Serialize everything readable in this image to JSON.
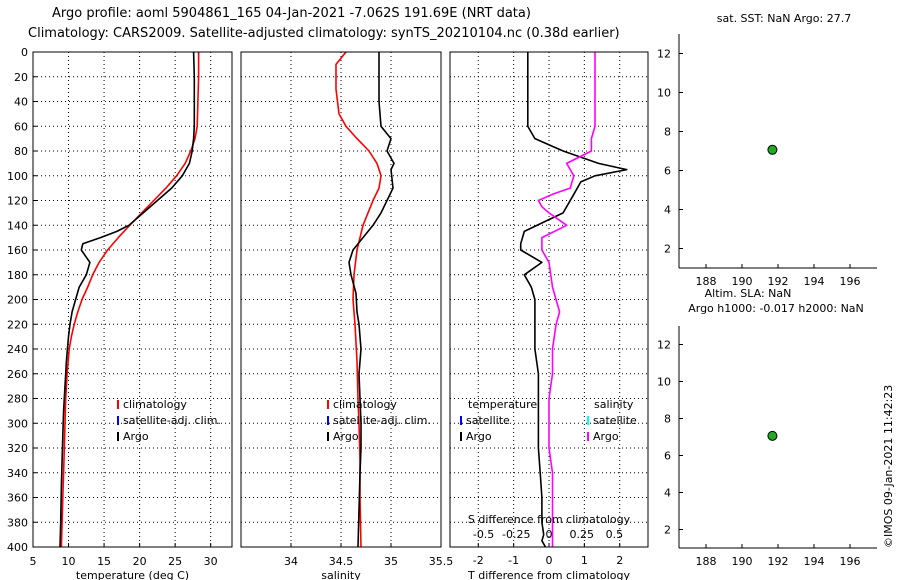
{
  "title_line1": "Argo profile: aoml 5904861_165 04-Jan-2021 -7.062S 191.69E (NRT data)",
  "title_line2": "Climatology: CARS2009. Satellite-adjusted climatology: synTS_20210104.nc (0.38d earlier)",
  "side_stamp": "©IMOS 09-Jan-2021 11:42:23",
  "colors": {
    "climatology": "#ff0000",
    "argo": "#000000",
    "satellite": "#0000ff",
    "salinity_diff": "#ff00ff",
    "satellite_s": "#00ffff",
    "marker": "#22aa22"
  },
  "chart_data": [
    {
      "type": "line",
      "name": "temperature-panel",
      "xlabel": "temperature (deg C)",
      "ylabel": "",
      "xlim": [
        5,
        33
      ],
      "ylim": [
        400,
        0
      ],
      "xticks": [
        5,
        10,
        15,
        20,
        25,
        30
      ],
      "yticks": [
        0,
        20,
        40,
        60,
        80,
        100,
        120,
        140,
        160,
        180,
        200,
        220,
        240,
        260,
        280,
        300,
        320,
        340,
        360,
        380,
        400
      ],
      "legend": [
        "climatology",
        "satellite-adj. clim.",
        "Argo"
      ],
      "series": [
        {
          "name": "climatology",
          "color": "#ff0000",
          "x": [
            28.3,
            28.3,
            28.2,
            28.1,
            27.8,
            27.2,
            26.4,
            25.2,
            23.7,
            22.0,
            20.3,
            18.6,
            17.0,
            15.5,
            14.3,
            13.4,
            12.7,
            11.9,
            11.3,
            10.8,
            10.4,
            10.1,
            9.8,
            9.6,
            9.5,
            9.4,
            9.3,
            9.2,
            9.1,
            9.0
          ],
          "y": [
            0,
            20,
            40,
            60,
            70,
            80,
            90,
            100,
            110,
            120,
            130,
            140,
            150,
            160,
            170,
            180,
            190,
            200,
            210,
            220,
            230,
            240,
            260,
            280,
            300,
            320,
            340,
            360,
            380,
            400
          ]
        },
        {
          "name": "Argo",
          "color": "#000000",
          "x": [
            27.6,
            27.7,
            27.7,
            27.7,
            27.6,
            27.4,
            27.0,
            26.0,
            24.5,
            22.5,
            20.5,
            18.5,
            16.8,
            14.5,
            12.0,
            11.8,
            13.0,
            12.5,
            11.5,
            11.0,
            10.5,
            10.2,
            10.0,
            9.7,
            9.5,
            9.3,
            9.2,
            9.1,
            9.0,
            8.9,
            8.8
          ],
          "y": [
            0,
            20,
            40,
            60,
            70,
            80,
            90,
            100,
            110,
            120,
            130,
            140,
            145,
            150,
            155,
            160,
            170,
            180,
            190,
            200,
            210,
            220,
            230,
            250,
            270,
            290,
            310,
            330,
            350,
            380,
            400
          ]
        }
      ]
    },
    {
      "type": "line",
      "name": "salinity-panel",
      "xlabel": "salinity",
      "ylabel": "",
      "xlim": [
        33.5,
        35.5
      ],
      "ylim": [
        400,
        0
      ],
      "xticks": [
        34,
        34.5,
        35,
        35.5
      ],
      "legend": [
        "climatology",
        "satellite-adj. clim.",
        "Argo"
      ],
      "series": [
        {
          "name": "climatology",
          "color": "#ff0000",
          "x": [
            34.55,
            34.45,
            34.45,
            34.48,
            34.55,
            34.66,
            34.78,
            34.86,
            34.9,
            34.88,
            34.82,
            34.72,
            34.66,
            34.63,
            34.62,
            34.64,
            34.66,
            34.67,
            34.68,
            34.69,
            34.69,
            34.7
          ],
          "y": [
            0,
            10,
            30,
            50,
            60,
            70,
            80,
            90,
            100,
            110,
            120,
            140,
            160,
            180,
            200,
            220,
            250,
            280,
            300,
            330,
            360,
            400
          ]
        },
        {
          "name": "Argo",
          "color": "#000000",
          "x": [
            34.88,
            34.88,
            34.88,
            34.9,
            35.0,
            34.96,
            35.03,
            35.0,
            35.02,
            34.9,
            34.82,
            34.72,
            34.62,
            34.58,
            34.6,
            34.65,
            34.66,
            34.68,
            34.7,
            34.68,
            34.69,
            34.7,
            34.7,
            34.69,
            34.68,
            34.67
          ],
          "y": [
            0,
            20,
            40,
            60,
            70,
            80,
            90,
            95,
            110,
            130,
            140,
            150,
            160,
            170,
            180,
            195,
            210,
            220,
            240,
            260,
            280,
            300,
            320,
            340,
            370,
            400
          ]
        }
      ]
    },
    {
      "type": "line",
      "name": "difference-panel",
      "xlabel": "T difference from climatology",
      "x2label": "S difference from climatology",
      "xlim": [
        -2.8,
        2.8
      ],
      "ylim": [
        400,
        0
      ],
      "xticks": [
        -2,
        -1,
        0,
        1,
        2
      ],
      "x2ticks": [
        -0.5,
        -0.25,
        0,
        0.25,
        0.5
      ],
      "legend_temperature_title": "temperature",
      "legend_salinity_title": "salinity",
      "legend_temperature": [
        "satellite",
        "Argo"
      ],
      "legend_salinity": [
        "satellite",
        "Argo"
      ],
      "series": [
        {
          "name": "T difference (Argo)",
          "color": "#000000",
          "x": [
            -0.6,
            -0.6,
            -0.6,
            -0.6,
            -0.4,
            0.4,
            1.4,
            2.2,
            1.3,
            0.9,
            0.7,
            0.4,
            -0.7,
            -0.8,
            -0.8,
            -0.2,
            -0.7,
            -0.5,
            -0.4,
            -0.4,
            -0.4,
            -0.4,
            -0.3,
            -0.3,
            -0.3,
            -0.3,
            -0.25,
            -0.2,
            -0.2,
            -0.15,
            -0.2,
            -0.1
          ],
          "y": [
            0,
            20,
            40,
            60,
            70,
            80,
            90,
            95,
            100,
            105,
            115,
            130,
            145,
            155,
            160,
            170,
            180,
            190,
            200,
            210,
            220,
            240,
            260,
            280,
            300,
            320,
            340,
            360,
            380,
            390,
            395,
            400
          ]
        },
        {
          "name": "S difference (Argo)",
          "color": "#ff00ff",
          "x": [
            1.3,
            1.3,
            1.3,
            1.3,
            1.2,
            1.2,
            0.5,
            0.7,
            0.6,
            0.1,
            -0.3,
            -0.2,
            0.0,
            0.5,
            -0.2,
            -0.2,
            0.0,
            0.1,
            0.3,
            0.2,
            0.1,
            0.1,
            0.0,
            0.0,
            0.0,
            0.1,
            0.1,
            0.1,
            0.1
          ],
          "y": [
            0,
            20,
            40,
            60,
            70,
            80,
            90,
            100,
            110,
            115,
            120,
            125,
            130,
            140,
            150,
            160,
            170,
            190,
            210,
            220,
            240,
            260,
            280,
            300,
            320,
            340,
            360,
            380,
            400
          ]
        }
      ]
    },
    {
      "type": "scatter",
      "name": "sst-map",
      "title": "sat. SST: NaN Argo: 27.7",
      "xlim": [
        186.5,
        197.5
      ],
      "ylim": [
        1,
        13
      ],
      "xticks": [
        188,
        190,
        192,
        194,
        196
      ],
      "yticks": [
        2,
        4,
        6,
        8,
        10,
        12
      ],
      "points": [
        {
          "x": 191.69,
          "y": 7.062
        }
      ]
    },
    {
      "type": "scatter",
      "name": "sla-map",
      "title": "Altim. SLA: NaN",
      "subtitle": "Argo h1000: -0.017 h2000: NaN",
      "xlim": [
        186.5,
        197.5
      ],
      "ylim": [
        1,
        13
      ],
      "xticks": [
        188,
        190,
        192,
        194,
        196
      ],
      "yticks": [
        2,
        4,
        6,
        8,
        10,
        12
      ],
      "points": [
        {
          "x": 191.69,
          "y": 7.062
        }
      ]
    }
  ]
}
